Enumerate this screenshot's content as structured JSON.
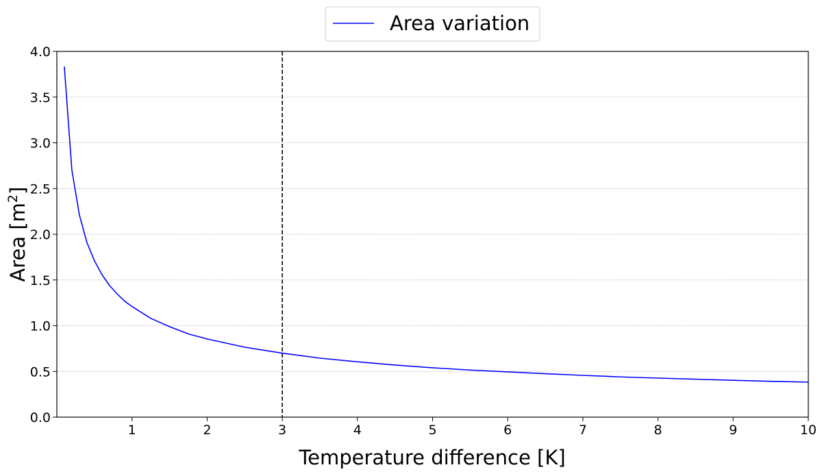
{
  "chart_data": {
    "type": "line",
    "title": "",
    "xlabel": "Temperature difference [K]",
    "ylabel_main": "Area [m",
    "ylabel_sup": "2",
    "ylabel_end": "]",
    "xlim": [
      0,
      10
    ],
    "ylim": [
      0.0,
      4.0
    ],
    "x_ticks": [
      1,
      2,
      3,
      4,
      5,
      6,
      7,
      8,
      9,
      10
    ],
    "x_tick_labels": [
      "1",
      "2",
      "3",
      "4",
      "5",
      "6",
      "7",
      "8",
      "9",
      "10"
    ],
    "y_ticks": [
      0.0,
      0.5,
      1.0,
      1.5,
      2.0,
      2.5,
      3.0,
      3.5,
      4.0
    ],
    "y_tick_labels": [
      "0.0",
      "0.5",
      "1.0",
      "1.5",
      "2.0",
      "2.5",
      "3.0",
      "3.5",
      "4.0"
    ],
    "grid": "horizontal",
    "legend_position": "top-center",
    "reference_line": {
      "x": 3,
      "style": "dashed",
      "color": "#000000"
    },
    "series": [
      {
        "name": "Area variation",
        "color": "#0000ff",
        "x": [
          0.1,
          0.2,
          0.3,
          0.4,
          0.5,
          0.6,
          0.7,
          0.8,
          0.9,
          1.0,
          1.25,
          1.5,
          1.75,
          2.0,
          2.5,
          3.0,
          3.5,
          4.0,
          4.5,
          5.0,
          5.5,
          6.0,
          6.5,
          7.0,
          7.5,
          8.0,
          8.5,
          9.0,
          9.5,
          10.0
        ],
        "values": [
          3.83,
          2.7,
          2.21,
          1.91,
          1.71,
          1.56,
          1.44,
          1.35,
          1.27,
          1.21,
          1.08,
          0.99,
          0.91,
          0.855,
          0.765,
          0.7,
          0.645,
          0.605,
          0.57,
          0.54,
          0.515,
          0.495,
          0.475,
          0.457,
          0.44,
          0.427,
          0.415,
          0.403,
          0.392,
          0.383
        ]
      }
    ]
  }
}
